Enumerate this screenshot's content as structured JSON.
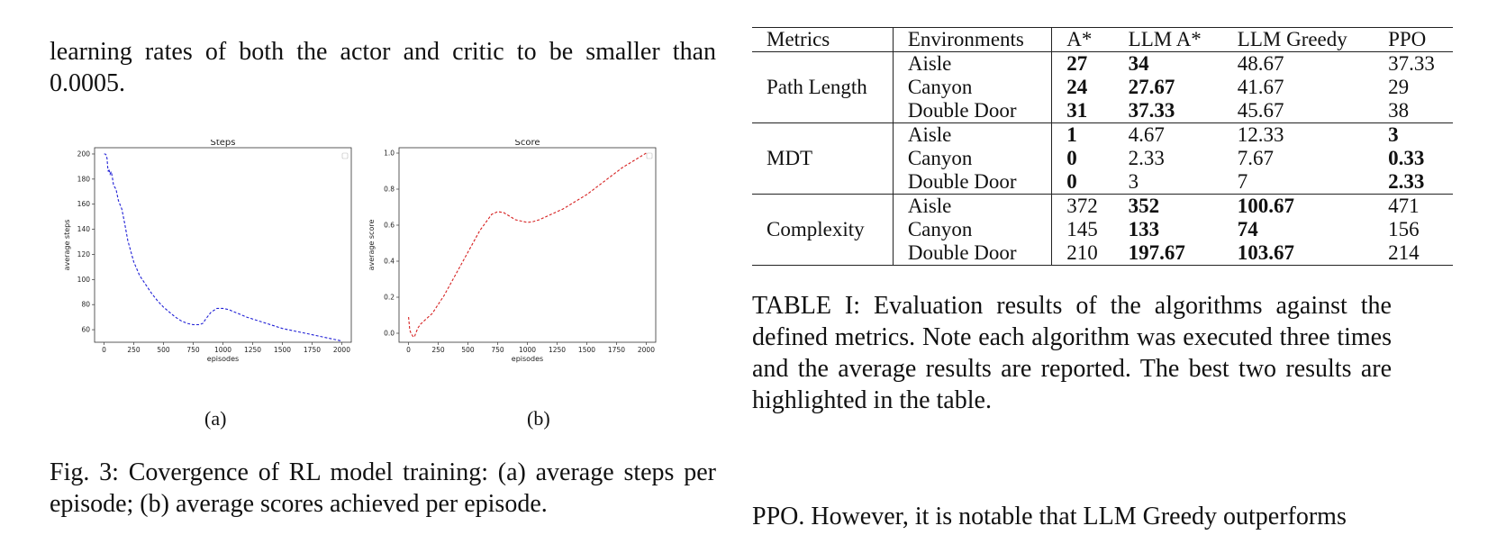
{
  "intro_text": "learning rates of both the actor and critic to be smaller than 0.0005.",
  "figure": {
    "subfigures": [
      {
        "label": "(a)",
        "chart_data": {
          "type": "line",
          "title": "Steps",
          "xlabel": "episodes",
          "ylabel": "average steps",
          "xlim": [
            -80,
            2080
          ],
          "ylim": [
            50,
            205
          ],
          "xticks": [
            0,
            250,
            500,
            750,
            1000,
            1250,
            1500,
            1750,
            2000
          ],
          "yticks": [
            60,
            80,
            100,
            120,
            140,
            160,
            180,
            200
          ],
          "color": "#1f1fd6",
          "line_style": "dashed",
          "legend": "top-right",
          "x": [
            0,
            10,
            20,
            25,
            30,
            35,
            40,
            50,
            60,
            70,
            80,
            100,
            120,
            150,
            175,
            200,
            250,
            300,
            350,
            400,
            450,
            500,
            550,
            600,
            650,
            700,
            750,
            800,
            830,
            860,
            900,
            950,
            1000,
            1050,
            1100,
            1150,
            1200,
            1300,
            1400,
            1500,
            1600,
            1700,
            1800,
            1900,
            2000
          ],
          "values": [
            200,
            200,
            199,
            196,
            190,
            186,
            188,
            184,
            186,
            181,
            175,
            172,
            163,
            156,
            144,
            131,
            114,
            103,
            96,
            89,
            83,
            78,
            74,
            70,
            67,
            65,
            64,
            64,
            65,
            69,
            74,
            77,
            77,
            76,
            74,
            72,
            70,
            67,
            64,
            61,
            59,
            57,
            55,
            53,
            51
          ]
        }
      },
      {
        "label": "(b)",
        "chart_data": {
          "type": "line",
          "title": "Score",
          "xlabel": "episodes",
          "ylabel": "average score",
          "xlim": [
            -80,
            2080
          ],
          "ylim": [
            -0.05,
            1.03
          ],
          "xticks": [
            0,
            250,
            500,
            750,
            1000,
            1250,
            1500,
            1750,
            2000
          ],
          "yticks": [
            0.0,
            0.2,
            0.4,
            0.6,
            0.8,
            1.0
          ],
          "color": "#d62020",
          "line_style": "dashed",
          "legend": "top-right",
          "x": [
            0,
            10,
            20,
            30,
            40,
            50,
            60,
            80,
            100,
            150,
            200,
            250,
            300,
            400,
            500,
            600,
            700,
            750,
            800,
            850,
            900,
            1000,
            1050,
            1100,
            1200,
            1300,
            1400,
            1500,
            1600,
            1700,
            1800,
            1900,
            2000
          ],
          "values": [
            0.09,
            0.02,
            0.0,
            -0.01,
            -0.02,
            -0.02,
            0.0,
            0.03,
            0.05,
            0.08,
            0.11,
            0.16,
            0.21,
            0.33,
            0.45,
            0.57,
            0.66,
            0.675,
            0.67,
            0.65,
            0.63,
            0.615,
            0.62,
            0.63,
            0.66,
            0.69,
            0.73,
            0.77,
            0.82,
            0.87,
            0.92,
            0.96,
            1.0
          ]
        }
      }
    ],
    "caption": "Fig. 3: Covergence of RL model training: (a) average steps per episode; (b) average scores achieved per episode."
  },
  "table": {
    "headers": [
      "Metrics",
      "Environments",
      "A*",
      "LLM A*",
      "LLM Greedy",
      "PPO"
    ],
    "groups": [
      {
        "metric": "Path Length",
        "rows": [
          {
            "env": "Aisle",
            "cells": [
              {
                "v": "27",
                "b": true
              },
              {
                "v": "34",
                "b": true
              },
              {
                "v": "48.67",
                "b": false
              },
              {
                "v": "37.33",
                "b": false
              }
            ]
          },
          {
            "env": "Canyon",
            "cells": [
              {
                "v": "24",
                "b": true
              },
              {
                "v": "27.67",
                "b": true
              },
              {
                "v": "41.67",
                "b": false
              },
              {
                "v": "29",
                "b": false
              }
            ]
          },
          {
            "env": "Double Door",
            "cells": [
              {
                "v": "31",
                "b": true
              },
              {
                "v": "37.33",
                "b": true
              },
              {
                "v": "45.67",
                "b": false
              },
              {
                "v": "38",
                "b": false
              }
            ]
          }
        ]
      },
      {
        "metric": "MDT",
        "rows": [
          {
            "env": "Aisle",
            "cells": [
              {
                "v": "1",
                "b": true
              },
              {
                "v": "4.67",
                "b": false
              },
              {
                "v": "12.33",
                "b": false
              },
              {
                "v": "3",
                "b": true
              }
            ]
          },
          {
            "env": "Canyon",
            "cells": [
              {
                "v": "0",
                "b": true
              },
              {
                "v": "2.33",
                "b": false
              },
              {
                "v": "7.67",
                "b": false
              },
              {
                "v": "0.33",
                "b": true
              }
            ]
          },
          {
            "env": "Double Door",
            "cells": [
              {
                "v": "0",
                "b": true
              },
              {
                "v": "3",
                "b": false
              },
              {
                "v": "7",
                "b": false
              },
              {
                "v": "2.33",
                "b": true
              }
            ]
          }
        ]
      },
      {
        "metric": "Complexity",
        "rows": [
          {
            "env": "Aisle",
            "cells": [
              {
                "v": "372",
                "b": false
              },
              {
                "v": "352",
                "b": true
              },
              {
                "v": "100.67",
                "b": true
              },
              {
                "v": "471",
                "b": false
              }
            ]
          },
          {
            "env": "Canyon",
            "cells": [
              {
                "v": "145",
                "b": false
              },
              {
                "v": "133",
                "b": true
              },
              {
                "v": "74",
                "b": true
              },
              {
                "v": "156",
                "b": false
              }
            ]
          },
          {
            "env": "Double Door",
            "cells": [
              {
                "v": "210",
                "b": false
              },
              {
                "v": "197.67",
                "b": true
              },
              {
                "v": "103.67",
                "b": true
              },
              {
                "v": "214",
                "b": false
              }
            ]
          }
        ]
      }
    ],
    "caption": "TABLE I: Evaluation results of the algorithms against the defined metrics. Note each algorithm was executed three times and the average results are reported. The best two results are highlighted in the table."
  },
  "next_paragraph": "PPO. However, it is notable that LLM Greedy outperforms"
}
